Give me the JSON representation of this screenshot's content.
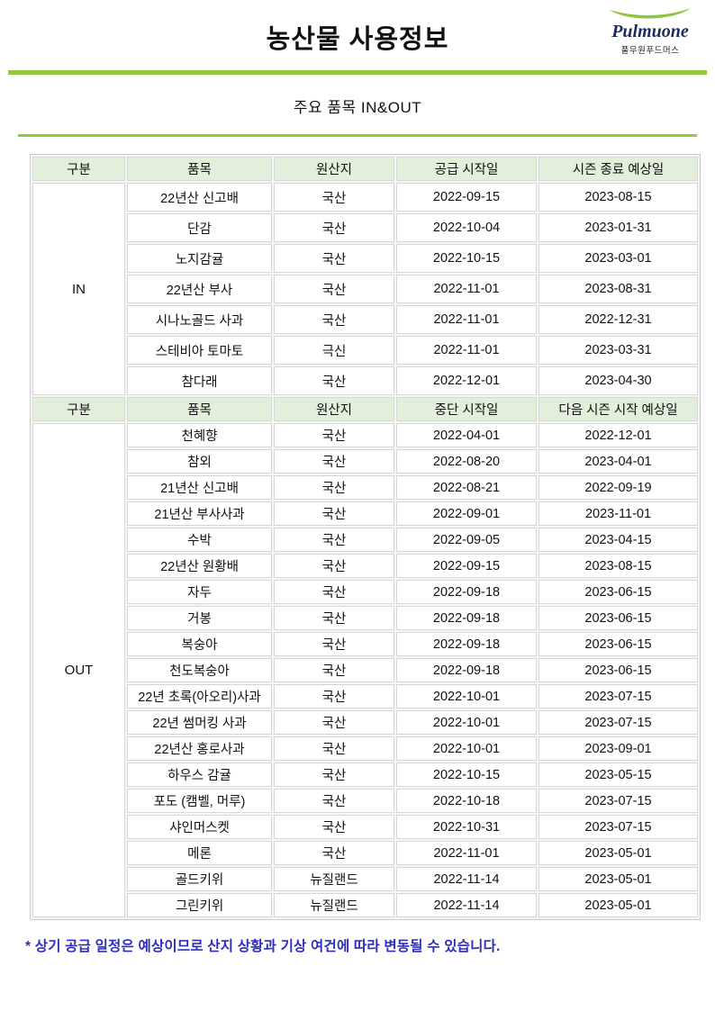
{
  "header": {
    "title": "농산물 사용정보",
    "logo": {
      "brand": "Pulmuone",
      "subbrand": "풀무원푸드머스",
      "swoosh_color": "#8dc63f"
    }
  },
  "subtitle": "주요 품목 IN&OUT",
  "colors": {
    "accent_green": "#94c83d",
    "table_header_bg": "#e2efda",
    "note_blue": "#2d2dc0",
    "brand_navy": "#1c2b5e"
  },
  "table": {
    "sections": [
      {
        "group_label": "IN",
        "columns": [
          "구분",
          "품목",
          "원산지",
          "공급 시작일",
          "시즌 종료 예상일"
        ],
        "rows": [
          {
            "item": "22년산 신고배",
            "origin": "국산",
            "date1": "2022-09-15",
            "date2": "2023-08-15"
          },
          {
            "item": "단감",
            "origin": "국산",
            "date1": "2022-10-04",
            "date2": "2023-01-31"
          },
          {
            "item": "노지감귤",
            "origin": "국산",
            "date1": "2022-10-15",
            "date2": "2023-03-01"
          },
          {
            "item": "22년산 부사",
            "origin": "국산",
            "date1": "2022-11-01",
            "date2": "2023-08-31"
          },
          {
            "item": "시나노골드 사과",
            "origin": "국산",
            "date1": "2022-11-01",
            "date2": "2022-12-31"
          },
          {
            "item": "스테비아 토마토",
            "origin": "극신",
            "date1": "2022-11-01",
            "date2": "2023-03-31"
          },
          {
            "item": "참다래",
            "origin": "국산",
            "date1": "2022-12-01",
            "date2": "2023-04-30"
          }
        ]
      },
      {
        "group_label": "OUT",
        "columns": [
          "구분",
          "품목",
          "원산지",
          "중단 시작일",
          "다음 시즌 시작 예상일"
        ],
        "rows": [
          {
            "item": "천혜향",
            "origin": "국산",
            "date1": "2022-04-01",
            "date2": "2022-12-01"
          },
          {
            "item": "참외",
            "origin": "국산",
            "date1": "2022-08-20",
            "date2": "2023-04-01"
          },
          {
            "item": "21년산 신고배",
            "origin": "국산",
            "date1": "2022-08-21",
            "date2": "2022-09-19"
          },
          {
            "item": "21년산 부사사과",
            "origin": "국산",
            "date1": "2022-09-01",
            "date2": "2023-11-01"
          },
          {
            "item": "수박",
            "origin": "국산",
            "date1": "2022-09-05",
            "date2": "2023-04-15"
          },
          {
            "item": "22년산 원황배",
            "origin": "국산",
            "date1": "2022-09-15",
            "date2": "2023-08-15"
          },
          {
            "item": "자두",
            "origin": "국산",
            "date1": "2022-09-18",
            "date2": "2023-06-15"
          },
          {
            "item": "거봉",
            "origin": "국산",
            "date1": "2022-09-18",
            "date2": "2023-06-15"
          },
          {
            "item": "복숭아",
            "origin": "국산",
            "date1": "2022-09-18",
            "date2": "2023-06-15"
          },
          {
            "item": "천도복숭아",
            "origin": "국산",
            "date1": "2022-09-18",
            "date2": "2023-06-15"
          },
          {
            "item": "22년 초록(아오리)사과",
            "origin": "국산",
            "date1": "2022-10-01",
            "date2": "2023-07-15"
          },
          {
            "item": "22년 썸머킹 사과",
            "origin": "국산",
            "date1": "2022-10-01",
            "date2": "2023-07-15"
          },
          {
            "item": "22년산 홍로사과",
            "origin": "국산",
            "date1": "2022-10-01",
            "date2": "2023-09-01"
          },
          {
            "item": "하우스 감귤",
            "origin": "국산",
            "date1": "2022-10-15",
            "date2": "2023-05-15"
          },
          {
            "item": "포도 (캠벨, 머루)",
            "origin": "국산",
            "date1": "2022-10-18",
            "date2": "2023-07-15"
          },
          {
            "item": "샤인머스켓",
            "origin": "국산",
            "date1": "2022-10-31",
            "date2": "2023-07-15"
          },
          {
            "item": "메론",
            "origin": "국산",
            "date1": "2022-11-01",
            "date2": "2023-05-01"
          },
          {
            "item": "골드키위",
            "origin": "뉴질랜드",
            "date1": "2022-11-14",
            "date2": "2023-05-01"
          },
          {
            "item": "그린키위",
            "origin": "뉴질랜드",
            "date1": "2022-11-14",
            "date2": "2023-05-01"
          }
        ]
      }
    ]
  },
  "footnote": "* 상기 공급 일정은 예상이므로 산지 상황과 기상 여건에 따라 변동될 수 있습니다."
}
